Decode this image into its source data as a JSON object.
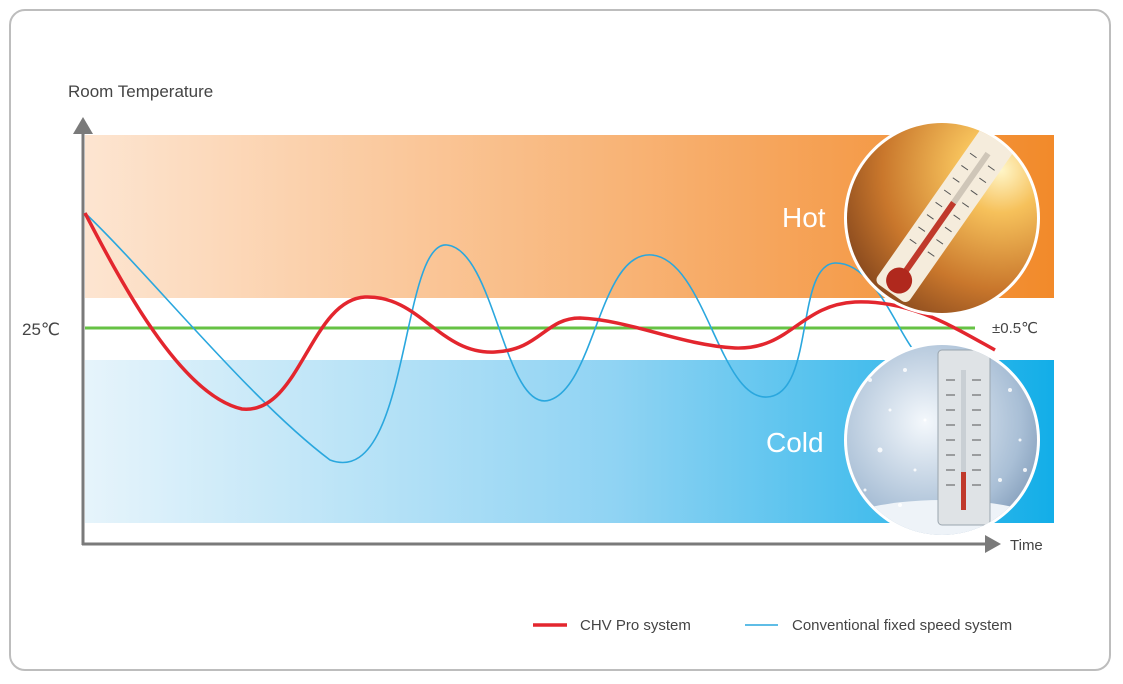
{
  "chart_data": {
    "type": "line",
    "ylabel": "Room Temperature",
    "xlabel": "Time",
    "reference": {
      "label": "25℃",
      "band_label": "±0.5℃"
    },
    "zones": {
      "hot": "Hot",
      "cold": "Cold"
    },
    "series": [
      {
        "name": "CHV Pro system",
        "color": "#e3262e",
        "points": [
          [
            0,
            27.8
          ],
          [
            0.05,
            24
          ],
          [
            0.1,
            23.3
          ],
          [
            0.17,
            25.5
          ],
          [
            0.23,
            24.8
          ],
          [
            0.29,
            25.2
          ],
          [
            0.35,
            24.9
          ],
          [
            0.41,
            24.8
          ],
          [
            0.47,
            25.4
          ],
          [
            0.52,
            25.3
          ],
          [
            0.58,
            24.8
          ]
        ]
      },
      {
        "name": "Conventional fixed speed system",
        "color": "#27a9e1",
        "points": [
          [
            0,
            27.8
          ],
          [
            0.08,
            23.5
          ],
          [
            0.15,
            22.3
          ],
          [
            0.21,
            26.9
          ],
          [
            0.27,
            24
          ],
          [
            0.33,
            26.8
          ],
          [
            0.39,
            24
          ],
          [
            0.45,
            26.7
          ],
          [
            0.5,
            24.8
          ]
        ]
      }
    ],
    "colors": {
      "hot": "#f28a2a",
      "cold": "#13aee8",
      "reference": "#66c244"
    }
  }
}
